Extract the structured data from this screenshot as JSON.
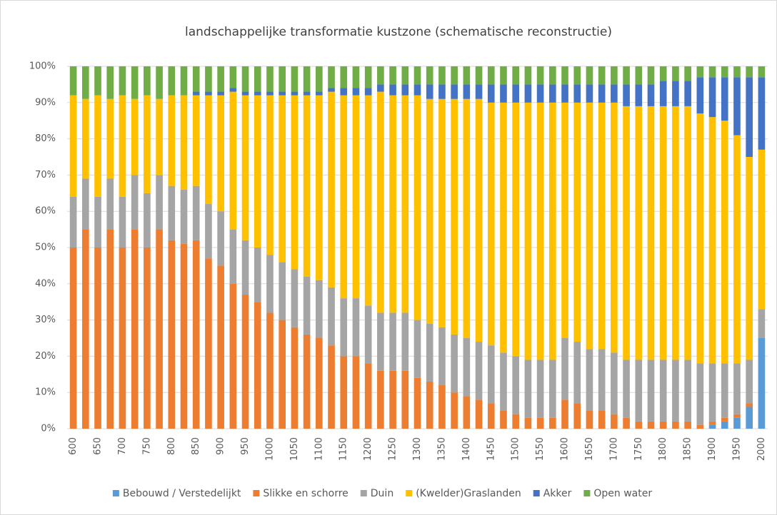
{
  "chart_data": {
    "type": "stacked_bar_100",
    "title": "landschappelijke transformatie kustzone (schematische reconstructie)",
    "categories": [
      "600",
      null,
      "650",
      null,
      "700",
      null,
      "750",
      null,
      "800",
      null,
      "850",
      null,
      "900",
      null,
      "950",
      null,
      "1000",
      null,
      "1050",
      null,
      "1100",
      null,
      "1150",
      null,
      "1200",
      null,
      "1250",
      null,
      "1300",
      null,
      "1350",
      null,
      "1400",
      null,
      "1450",
      null,
      "1500",
      null,
      "1550",
      null,
      "1600",
      null,
      "1650",
      null,
      "1700",
      null,
      "1750",
      null,
      "1800",
      null,
      "1850",
      null,
      "1900",
      null,
      "1950",
      null,
      "2000"
    ],
    "series": [
      {
        "name": "Bebouwd / Verstedelijkt",
        "color": "#5b9bd5",
        "values": [
          0,
          0,
          0,
          0,
          0,
          0,
          0,
          0,
          0,
          0,
          0,
          0,
          0,
          0,
          0,
          0,
          0,
          0,
          0,
          0,
          0,
          0,
          0,
          0,
          0,
          0,
          0,
          0,
          0,
          0,
          0,
          0,
          0,
          0,
          0,
          0,
          0,
          0,
          0,
          0,
          0,
          0,
          0,
          0,
          0,
          0,
          0,
          0,
          0,
          0,
          0,
          0,
          1,
          2,
          3,
          6,
          25
        ]
      },
      {
        "name": "Slikke en schorre",
        "color": "#ed7d31",
        "values": [
          50,
          55,
          50,
          55,
          50,
          55,
          50,
          55,
          52,
          51,
          52,
          47,
          45,
          40,
          37,
          35,
          32,
          30,
          28,
          26,
          25,
          23,
          20,
          20,
          18,
          16,
          16,
          16,
          14,
          13,
          12,
          10,
          9,
          8,
          7,
          5,
          4,
          3,
          3,
          3,
          8,
          7,
          5,
          5,
          4,
          3,
          2,
          2,
          2,
          2,
          2,
          1,
          1,
          1,
          1,
          1,
          0
        ]
      },
      {
        "name": "Duin",
        "color": "#a5a5a5",
        "values": [
          14,
          14,
          14,
          14,
          14,
          15,
          15,
          15,
          15,
          15,
          15,
          15,
          15,
          15,
          15,
          15,
          16,
          16,
          16,
          16,
          16,
          16,
          16,
          16,
          16,
          16,
          16,
          16,
          16,
          16,
          16,
          16,
          16,
          16,
          16,
          16,
          16,
          16,
          16,
          16,
          17,
          17,
          17,
          17,
          17,
          16,
          17,
          17,
          17,
          17,
          17,
          17,
          16,
          15,
          14,
          12,
          8
        ]
      },
      {
        "name": "(Kwelder)Graslanden",
        "color": "#ffc000",
        "values": [
          28,
          22,
          28,
          22,
          28,
          21,
          27,
          21,
          25,
          26,
          25,
          30,
          32,
          38,
          40,
          42,
          44,
          46,
          48,
          50,
          51,
          54,
          56,
          56,
          58,
          61,
          60,
          60,
          62,
          62,
          63,
          65,
          66,
          67,
          67,
          69,
          70,
          71,
          71,
          71,
          65,
          66,
          68,
          68,
          69,
          70,
          70,
          70,
          70,
          70,
          70,
          69,
          68,
          67,
          63,
          56,
          44
        ]
      },
      {
        "name": "Akker",
        "color": "#4472c4",
        "values": [
          0,
          0,
          0,
          0,
          0,
          0,
          0,
          0,
          0,
          0,
          1,
          1,
          1,
          1,
          1,
          1,
          1,
          1,
          1,
          1,
          1,
          1,
          2,
          2,
          2,
          2,
          3,
          3,
          3,
          4,
          4,
          4,
          4,
          4,
          5,
          5,
          5,
          5,
          5,
          5,
          5,
          5,
          5,
          5,
          5,
          6,
          6,
          6,
          7,
          7,
          7,
          10,
          11,
          12,
          16,
          22,
          20
        ]
      },
      {
        "name": "Open water",
        "color": "#70ad47",
        "values": [
          8,
          9,
          8,
          9,
          8,
          9,
          8,
          9,
          8,
          8,
          7,
          7,
          7,
          6,
          7,
          7,
          7,
          7,
          7,
          7,
          7,
          6,
          6,
          6,
          6,
          5,
          5,
          5,
          5,
          5,
          5,
          5,
          5,
          5,
          5,
          5,
          5,
          5,
          5,
          5,
          5,
          5,
          5,
          5,
          5,
          5,
          5,
          5,
          4,
          4,
          4,
          3,
          3,
          3,
          3,
          3,
          3
        ]
      }
    ],
    "ylim": [
      0,
      100
    ],
    "yticks": [
      {
        "value": 0,
        "label": "0%"
      },
      {
        "value": 10,
        "label": "10%"
      },
      {
        "value": 20,
        "label": "20%"
      },
      {
        "value": 30,
        "label": "30%"
      },
      {
        "value": 40,
        "label": "40%"
      },
      {
        "value": 50,
        "label": "50%"
      },
      {
        "value": 60,
        "label": "60%"
      },
      {
        "value": 70,
        "label": "70%"
      },
      {
        "value": 80,
        "label": "80%"
      },
      {
        "value": 90,
        "label": "90%"
      },
      {
        "value": 100,
        "label": "100%"
      }
    ],
    "grid": true,
    "legend": "bottom"
  }
}
